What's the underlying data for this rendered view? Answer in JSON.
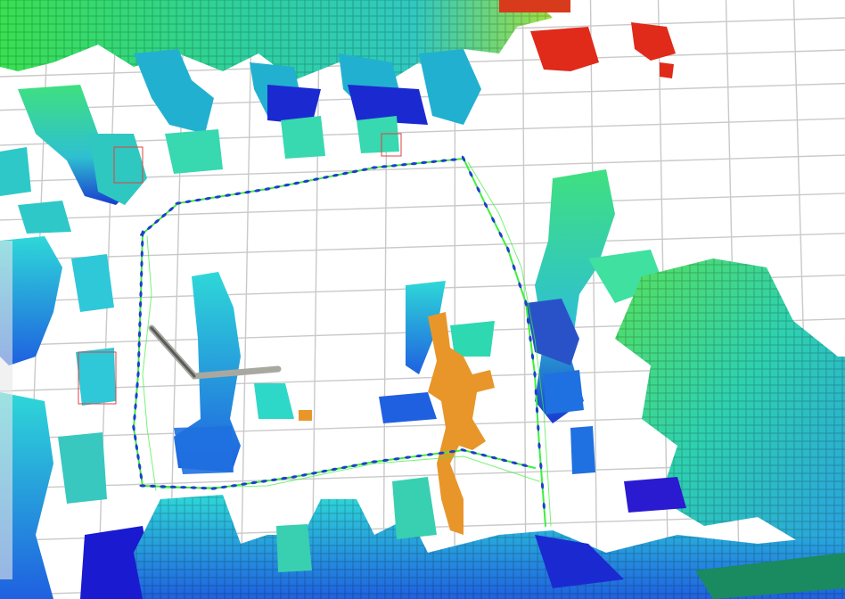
{
  "scene": {
    "type": "3d-voxel-occupancy-map",
    "background_color": "#ffffff",
    "grid_color": "#c9c9c9",
    "trajectory_color": "#3cf03c",
    "pose_marker_color": "#1e40c8",
    "highlight_color": "#e8962a",
    "colormap": [
      "#1a1ad0",
      "#1f78e0",
      "#2ec8d8",
      "#3fe0a0",
      "#57e05a",
      "#9ee040",
      "#e03020"
    ],
    "clusters": [
      {
        "name": "top-band",
        "level": 0.82
      },
      {
        "name": "top-red-block-left",
        "level": 1.0
      },
      {
        "name": "top-red-block-right",
        "level": 1.0
      },
      {
        "name": "upper-left-column",
        "level": 0.55
      },
      {
        "name": "left-edge-cluster",
        "level": 0.4
      },
      {
        "name": "center-left-tower",
        "level": 0.45
      },
      {
        "name": "center-right-cluster",
        "level": 0.35
      },
      {
        "name": "right-tower",
        "level": 0.3
      },
      {
        "name": "right-wall",
        "level": 0.55
      },
      {
        "name": "bottom-row",
        "level": 0.35
      },
      {
        "name": "bottom-right-floor",
        "level": 0.5
      }
    ]
  }
}
